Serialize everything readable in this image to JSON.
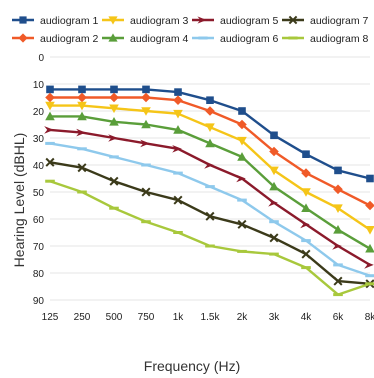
{
  "chart_data": {
    "type": "line",
    "title": "",
    "xlabel": "Frequency (Hz)",
    "ylabel": "Hearing Level (dBHL)",
    "x": [
      "125",
      "250",
      "500",
      "750",
      "1k",
      "1.5k",
      "2k",
      "3k",
      "4k",
      "6k",
      "8k"
    ],
    "yticks": [
      0,
      10,
      20,
      30,
      40,
      50,
      60,
      70,
      80,
      90
    ],
    "ylim": [
      0,
      90
    ],
    "y_inverted": true,
    "grid": "horizontal",
    "legend": "top",
    "series": [
      {
        "name": "audiogram 1",
        "color": "#1f4e8c",
        "marker": "square",
        "values": [
          12,
          12,
          12,
          12,
          13,
          16,
          20,
          29,
          36,
          42,
          45
        ]
      },
      {
        "name": "audiogram 2",
        "color": "#f05a28",
        "marker": "diamond",
        "values": [
          15,
          15,
          15,
          15,
          16,
          20,
          25,
          35,
          43,
          49,
          55
        ]
      },
      {
        "name": "audiogram 3",
        "color": "#f5c518",
        "marker": "triangle-down",
        "values": [
          18,
          18,
          19,
          20,
          21,
          26,
          31,
          42,
          50,
          56,
          64
        ]
      },
      {
        "name": "audiogram 4",
        "color": "#5a9e3a",
        "marker": "triangle-up",
        "values": [
          22,
          22,
          24,
          25,
          27,
          32,
          37,
          48,
          56,
          64,
          71
        ]
      },
      {
        "name": "audiogram 5",
        "color": "#8b1a2b",
        "marker": "arrow",
        "values": [
          27,
          28,
          30,
          32,
          34,
          40,
          45,
          54,
          62,
          70,
          77
        ]
      },
      {
        "name": "audiogram 6",
        "color": "#8ec9ec",
        "marker": "dash",
        "values": [
          32,
          34,
          37,
          40,
          43,
          48,
          53,
          61,
          68,
          77,
          81
        ]
      },
      {
        "name": "audiogram 7",
        "color": "#3b3a1a",
        "marker": "x",
        "values": [
          39,
          41,
          46,
          50,
          53,
          59,
          62,
          67,
          73,
          83,
          84
        ]
      },
      {
        "name": "audiogram 8",
        "color": "#a8c83c",
        "marker": "dash",
        "values": [
          46,
          50,
          56,
          61,
          65,
          70,
          72,
          73,
          78,
          88,
          84
        ]
      }
    ]
  }
}
